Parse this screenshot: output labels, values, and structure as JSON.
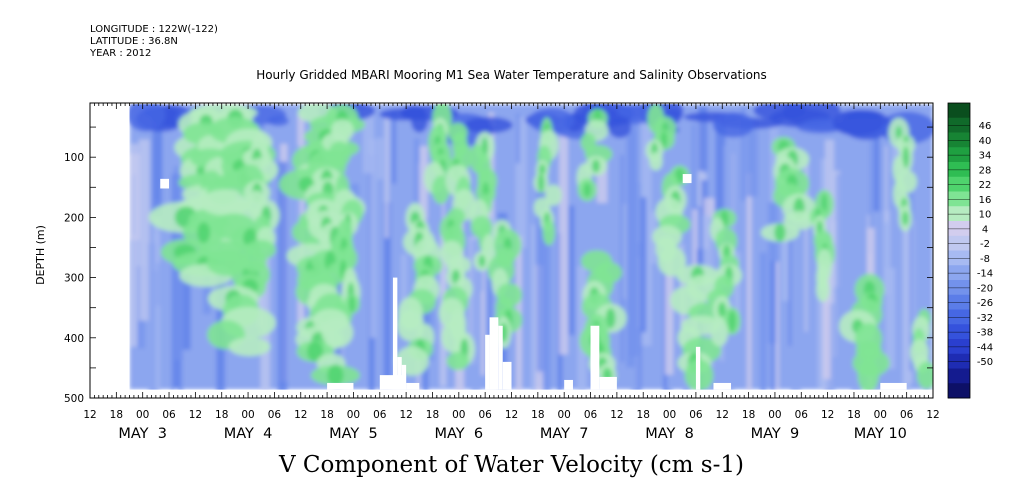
{
  "meta": {
    "longitude": "LONGITUDE : 122W(-122)",
    "latitude": "LATITUDE : 36.8N",
    "year": "YEAR : 2012"
  },
  "title": "Hourly Gridded MBARI Mooring M1 Sea Water Temperature and Salinity Observations",
  "bottom_title": "V Component of Water Velocity (cm s-1)",
  "chart_data": {
    "type": "heatmap",
    "title": "Hourly Gridded MBARI Mooring M1 Sea Water Temperature and Salinity Observations",
    "xlabel": "",
    "ylabel": "DEPTH (m)",
    "variable_label": "V Component of Water Velocity (cm s-1)",
    "x_start": "2012-05-02 12:00",
    "x_end": "2012-05-10 12:00",
    "data_start": "2012-05-02 21:00",
    "data_end": "2012-05-10 12:00",
    "x_tick_hours": [
      "12",
      "18",
      "00",
      "06",
      "12",
      "18",
      "00",
      "06",
      "12",
      "18",
      "00",
      "06",
      "12",
      "18",
      "00",
      "06",
      "12",
      "18",
      "00",
      "06",
      "12",
      "18",
      "00",
      "06",
      "12",
      "18",
      "00",
      "06",
      "12",
      "18",
      "00",
      "06",
      "12"
    ],
    "x_date_labels": [
      {
        "label": "MAY  3",
        "day": 3
      },
      {
        "label": "MAY  4",
        "day": 4
      },
      {
        "label": "MAY  5",
        "day": 5
      },
      {
        "label": "MAY  6",
        "day": 6
      },
      {
        "label": "MAY  7",
        "day": 7
      },
      {
        "label": "MAY  8",
        "day": 8
      },
      {
        "label": "MAY  9",
        "day": 9
      },
      {
        "label": "MAY 10",
        "day": 10
      }
    ],
    "y_ticks": [
      100,
      200,
      300,
      400,
      500
    ],
    "y_tick_labels": [
      "100",
      "200",
      "300",
      "400",
      "500"
    ],
    "ylim": [
      500,
      10
    ],
    "y_inverted": true,
    "colorbar": {
      "levels": [
        -50,
        -44,
        -38,
        -32,
        -26,
        -20,
        -14,
        -8,
        -2,
        4,
        10,
        16,
        22,
        28,
        34,
        40,
        46
      ],
      "level_labels": [
        "-50",
        "-44",
        "-38",
        "-32",
        "-26",
        "-20",
        "-14",
        "-8",
        "-2",
        "4",
        "10",
        "16",
        "22",
        "28",
        "34",
        "40",
        "46"
      ],
      "colors": [
        "#0d1067",
        "#141b8f",
        "#1e2cb3",
        "#2a3fcf",
        "#3552dc",
        "#4667e3",
        "#5b7de8",
        "#7392ec",
        "#8ca6ef",
        "#a7baf2",
        "#c0c8f0",
        "#d2cdee",
        "#b6ecc1",
        "#7fe494",
        "#4fd36d",
        "#2fbd53",
        "#1fa041",
        "#178434",
        "#106a2a",
        "#0a4e1e"
      ]
    },
    "features": [
      {
        "desc": "positive V (green) bands",
        "times": [
          "May 3 00-12",
          "May 4 12-May 4 20",
          "May 6 03",
          "May 6 11",
          "May 7 03",
          "May 7 12",
          "May 8 00-06",
          "May 9 00",
          "May 9 12"
        ],
        "range_cm_s": [
          4,
          20
        ]
      },
      {
        "desc": "negative V (blue) background",
        "range_cm_s": [
          -26,
          -2
        ]
      },
      {
        "desc": "strongest negative near surface",
        "depth_m": [
          10,
          60
        ],
        "range_cm_s": [
          -32,
          -20
        ]
      }
    ]
  }
}
